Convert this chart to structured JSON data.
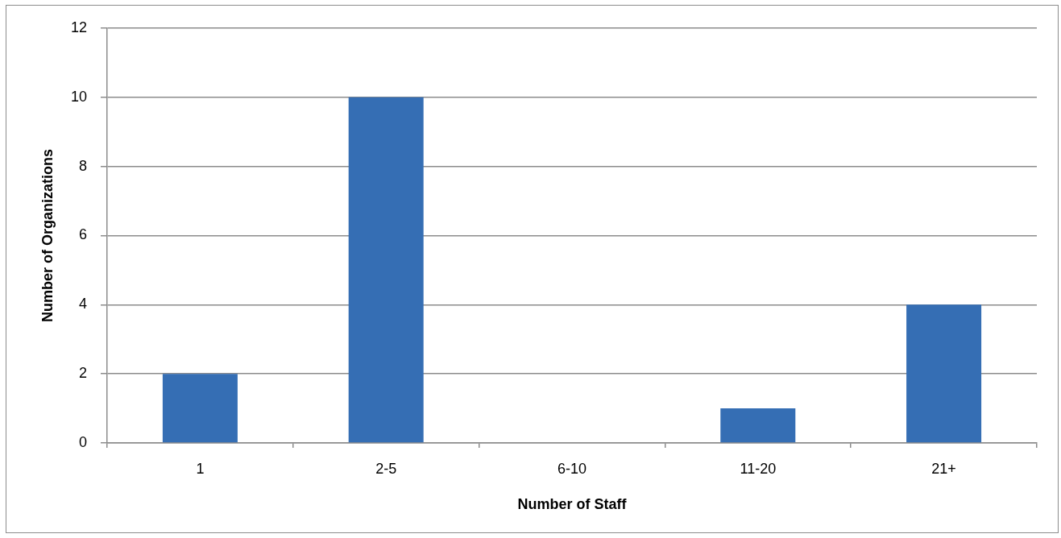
{
  "chart_data": {
    "type": "bar",
    "xlabel": "Number of Staff",
    "ylabel": "Number of Organizations",
    "categories": [
      "1",
      "2-5",
      "6-10",
      "11-20",
      "21+"
    ],
    "values": [
      2,
      10,
      0,
      1,
      4
    ],
    "color": "#356eb4",
    "ylim": [
      0,
      12
    ],
    "yticks": [
      0,
      2,
      4,
      6,
      8,
      10,
      12
    ],
    "grid": "y"
  }
}
